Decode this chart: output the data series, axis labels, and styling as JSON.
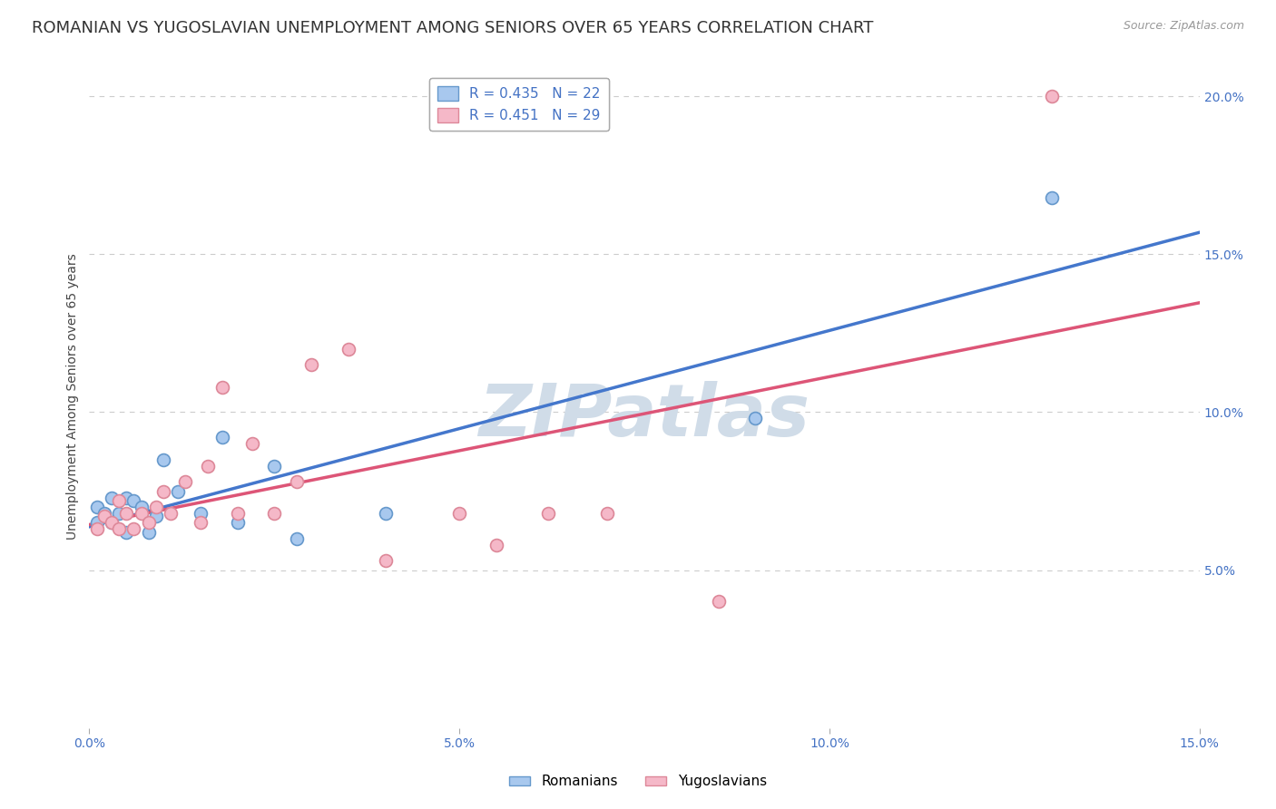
{
  "title": "ROMANIAN VS YUGOSLAVIAN UNEMPLOYMENT AMONG SENIORS OVER 65 YEARS CORRELATION CHART",
  "source": "Source: ZipAtlas.com",
  "ylabel": "Unemployment Among Seniors over 65 years",
  "xlim": [
    0.0,
    0.15
  ],
  "ylim": [
    0.0,
    0.21
  ],
  "xticks": [
    0.0,
    0.05,
    0.1,
    0.15
  ],
  "xtick_labels": [
    "0.0%",
    "5.0%",
    "10.0%",
    "15.0%"
  ],
  "ytick_positions_right": [
    0.05,
    0.1,
    0.15,
    0.2
  ],
  "ytick_labels_right": [
    "5.0%",
    "10.0%",
    "15.0%",
    "20.0%"
  ],
  "romanian_r": 0.435,
  "romanian_n": 22,
  "yugoslavian_r": 0.451,
  "yugoslavian_n": 29,
  "romanian_color": "#a8c8ee",
  "romanian_edge_color": "#6699cc",
  "yugoslavian_color": "#f5b8c8",
  "yugoslavian_edge_color": "#dd8899",
  "line_romanian_color": "#4477cc",
  "line_yugoslavian_color": "#dd5577",
  "watermark_color": "#d0dce8",
  "background_color": "#ffffff",
  "romanians_x": [
    0.001,
    0.001,
    0.002,
    0.003,
    0.003,
    0.004,
    0.005,
    0.005,
    0.006,
    0.007,
    0.008,
    0.009,
    0.01,
    0.012,
    0.015,
    0.018,
    0.02,
    0.025,
    0.028,
    0.04,
    0.09,
    0.13
  ],
  "romanians_y": [
    0.065,
    0.07,
    0.068,
    0.065,
    0.073,
    0.068,
    0.062,
    0.073,
    0.072,
    0.07,
    0.062,
    0.067,
    0.085,
    0.075,
    0.068,
    0.092,
    0.065,
    0.083,
    0.06,
    0.068,
    0.098,
    0.168
  ],
  "yugoslavians_x": [
    0.001,
    0.002,
    0.003,
    0.004,
    0.004,
    0.005,
    0.006,
    0.007,
    0.008,
    0.009,
    0.01,
    0.011,
    0.013,
    0.015,
    0.016,
    0.018,
    0.02,
    0.022,
    0.025,
    0.028,
    0.03,
    0.035,
    0.04,
    0.05,
    0.055,
    0.062,
    0.07,
    0.085,
    0.13
  ],
  "yugoslavians_y": [
    0.063,
    0.067,
    0.065,
    0.063,
    0.072,
    0.068,
    0.063,
    0.068,
    0.065,
    0.07,
    0.075,
    0.068,
    0.078,
    0.065,
    0.083,
    0.108,
    0.068,
    0.09,
    0.068,
    0.078,
    0.115,
    0.12,
    0.053,
    0.068,
    0.058,
    0.068,
    0.068,
    0.04,
    0.2
  ],
  "grid_color": "#cccccc",
  "title_fontsize": 13,
  "axis_label_fontsize": 10,
  "tick_fontsize": 10,
  "legend_fontsize": 11,
  "marker_size": 100
}
